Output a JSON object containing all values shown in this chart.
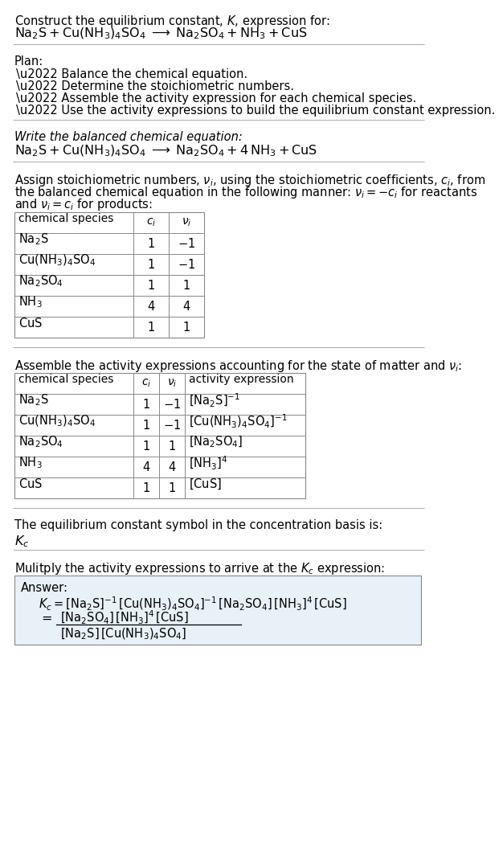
{
  "bg_color": "#ffffff",
  "text_color": "#000000",
  "title_line1": "Construct the equilibrium constant, $K$, expression for:",
  "title_line2_parts": [
    "$\\mathrm{Na_2S + Cu(NH_3)_4SO_4 \\;\\longrightarrow\\; Na_2SO_4 + NH_3 + CuS}$"
  ],
  "plan_header": "Plan:",
  "plan_items": [
    "\\u2022 Balance the chemical equation.",
    "\\u2022 Determine the stoichiometric numbers.",
    "\\u2022 Assemble the activity expression for each chemical species.",
    "\\u2022 Use the activity expressions to build the equilibrium constant expression."
  ],
  "balanced_header": "Write the balanced chemical equation:",
  "balanced_eq": "$\\mathrm{Na_2S + Cu(NH_3)_4SO_4 \\;\\longrightarrow\\; Na_2SO_4 + 4\\,NH_3 + CuS}$",
  "stoich_intro_lines": [
    "Assign stoichiometric numbers, $\\nu_i$, using the stoichiometric coefficients, $c_i$, from",
    "the balanced chemical equation in the following manner: $\\nu_i = -c_i$ for reactants",
    "and $\\nu_i = c_i$ for products:"
  ],
  "table1_headers": [
    "chemical species",
    "$c_i$",
    "$\\nu_i$"
  ],
  "table1_rows": [
    [
      "$\\mathrm{Na_2S}$",
      "1",
      "$-1$"
    ],
    [
      "$\\mathrm{Cu(NH_3)_4SO_4}$",
      "1",
      "$-1$"
    ],
    [
      "$\\mathrm{Na_2SO_4}$",
      "1",
      "1"
    ],
    [
      "$\\mathrm{NH_3}$",
      "4",
      "4"
    ],
    [
      "$\\mathrm{CuS}$",
      "1",
      "1"
    ]
  ],
  "activity_intro": "Assemble the activity expressions accounting for the state of matter and $\\nu_i$:",
  "table2_headers": [
    "chemical species",
    "$c_i$",
    "$\\nu_i$",
    "activity expression"
  ],
  "table2_rows": [
    [
      "$\\mathrm{Na_2S}$",
      "1",
      "$-1$",
      "$[\\mathrm{Na_2S}]^{-1}$"
    ],
    [
      "$\\mathrm{Cu(NH_3)_4SO_4}$",
      "1",
      "$-1$",
      "$[\\mathrm{Cu(NH_3)_4SO_4}]^{-1}$"
    ],
    [
      "$\\mathrm{Na_2SO_4}$",
      "1",
      "1",
      "$[\\mathrm{Na_2SO_4}]$"
    ],
    [
      "$\\mathrm{NH_3}$",
      "4",
      "4",
      "$[\\mathrm{NH_3}]^4$"
    ],
    [
      "$\\mathrm{CuS}$",
      "1",
      "1",
      "$[\\mathrm{CuS}]$"
    ]
  ],
  "kc_symbol_text": "The equilibrium constant symbol in the concentration basis is:",
  "kc_symbol": "$K_c$",
  "multiply_text": "Mulitply the activity expressions to arrive at the $K_c$ expression:",
  "answer_label": "Answer:",
  "answer_line1": "$K_c = [\\mathrm{Na_2S}]^{-1}\\,[\\mathrm{Cu(NH_3)_4SO_4}]^{-1}\\,[\\mathrm{Na_2SO_4}]\\,[\\mathrm{NH_3}]^4\\,[\\mathrm{CuS}]$",
  "answer_eq_lhs": "$K_c =$",
  "answer_frac_num": "$[\\mathrm{Na_2SO_4}]\\,[\\mathrm{NH_3}]^4\\,[\\mathrm{CuS}]$",
  "answer_frac_den": "$[\\mathrm{Na_2S}]\\,[\\mathrm{Cu(NH_3)_4SO_4}]$",
  "answer_box_color": "#e8f0f8",
  "table_border_color": "#888888",
  "separator_color": "#aaaaaa",
  "font_size": 10.5
}
